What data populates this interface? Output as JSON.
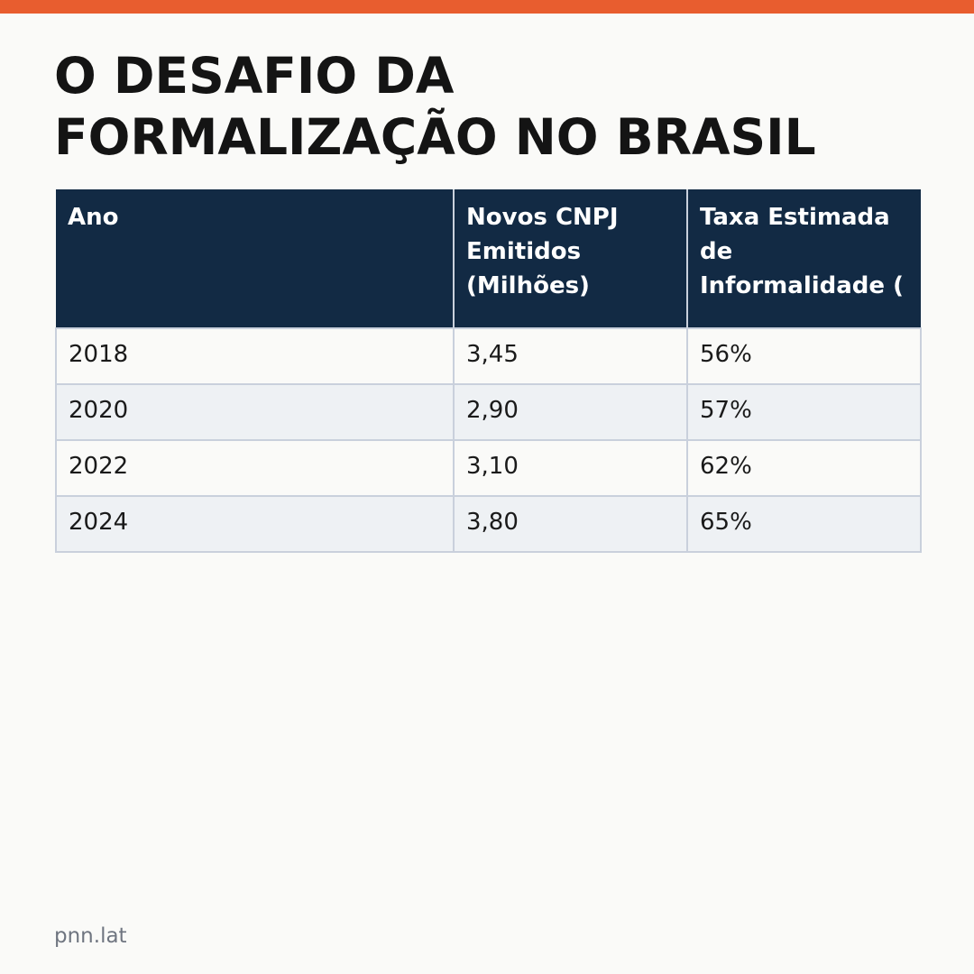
{
  "colors": {
    "accent_bar": "#e85d2f",
    "header_bg": "#122a44",
    "header_text": "#ffffff",
    "row_alt_bg": "#eef1f4",
    "border": "#c9d0dc"
  },
  "title_lines": [
    "O DESAFIO DA",
    "FORMALIZAÇÃO NO BRASIL"
  ],
  "chart_data": {
    "type": "table",
    "title": "O DESAFIO DA FORMALIZAÇÃO NO BRASIL",
    "columns": [
      "Ano",
      "Novos CNPJ Emitidos (Milhões)",
      "Taxa Estimada de Informalidade ("
    ],
    "rows": [
      [
        "2018",
        "3,45",
        "56%"
      ],
      [
        "2020",
        "2,90",
        "57%"
      ],
      [
        "2022",
        "3,10",
        "62%"
      ],
      [
        "2024",
        "3,80",
        "65%"
      ]
    ]
  },
  "footer": {
    "source": "pnn.lat"
  }
}
